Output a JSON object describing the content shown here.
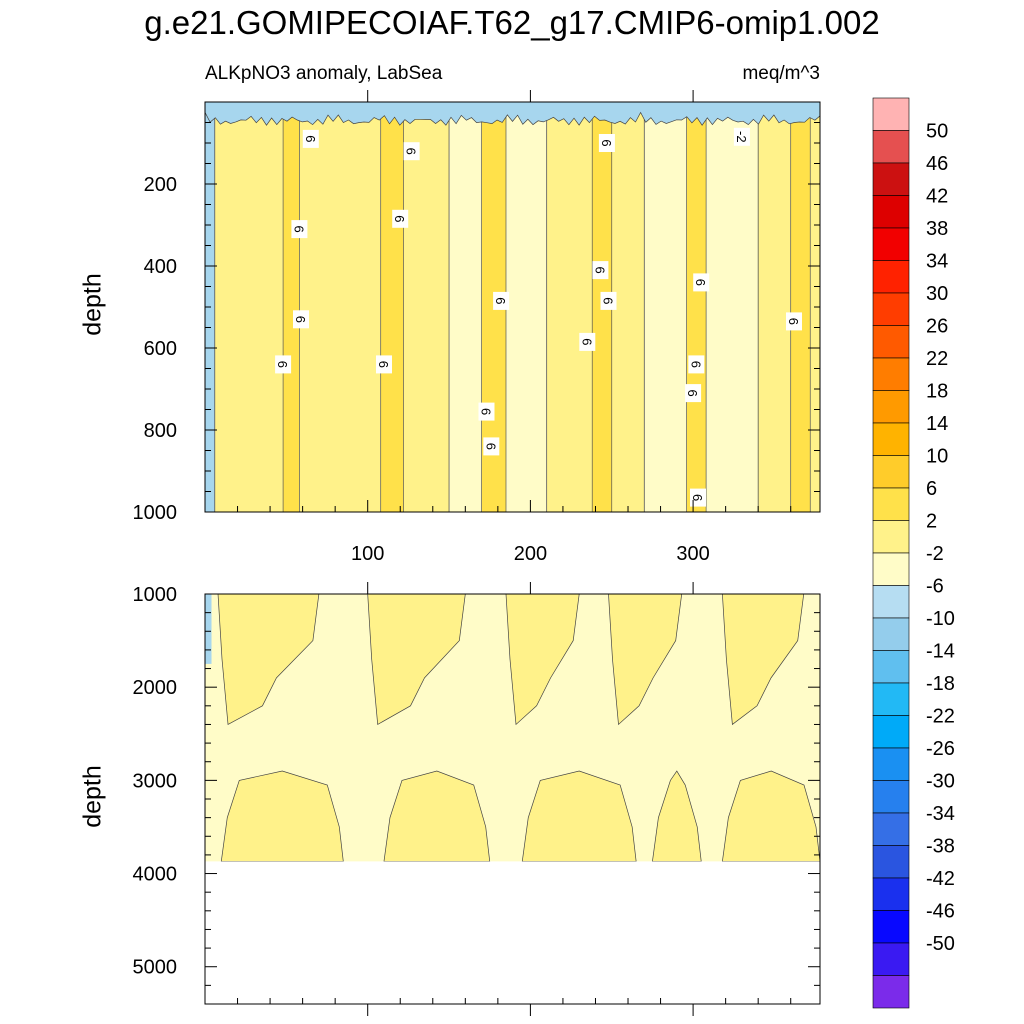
{
  "title": "g.e21.GOMIPECOIAF.T62_g17.CMIP6-omip1.002",
  "subtitle_left": "ALKpNO3 anomaly, LabSea",
  "subtitle_right": "meq/m^3",
  "chart_data": [
    {
      "type": "heatmap",
      "panel": "upper",
      "ylabel": "depth",
      "xlabel": "",
      "xlim": [
        0,
        378
      ],
      "ylim": [
        1000,
        0
      ],
      "x_ticks": [
        100,
        200,
        300
      ],
      "y_ticks": [
        200,
        400,
        600,
        800,
        1000
      ],
      "contour_labels": [
        {
          "x": 65,
          "y": 90,
          "text": "6"
        },
        {
          "x": 127,
          "y": 120,
          "text": "6"
        },
        {
          "x": 247,
          "y": 100,
          "text": "6"
        },
        {
          "x": 330,
          "y": 85,
          "text": "-2"
        },
        {
          "x": 58,
          "y": 310,
          "text": "6"
        },
        {
          "x": 120,
          "y": 285,
          "text": "6"
        },
        {
          "x": 243,
          "y": 410,
          "text": "6"
        },
        {
          "x": 305,
          "y": 440,
          "text": "6"
        },
        {
          "x": 182,
          "y": 485,
          "text": "6"
        },
        {
          "x": 248,
          "y": 485,
          "text": "6"
        },
        {
          "x": 362,
          "y": 535,
          "text": "6"
        },
        {
          "x": 59,
          "y": 530,
          "text": "6"
        },
        {
          "x": 235,
          "y": 585,
          "text": "6"
        },
        {
          "x": 48,
          "y": 640,
          "text": "6"
        },
        {
          "x": 110,
          "y": 640,
          "text": "6"
        },
        {
          "x": 302,
          "y": 640,
          "text": "6"
        },
        {
          "x": 300,
          "y": 710,
          "text": "6"
        },
        {
          "x": 173,
          "y": 755,
          "text": "6"
        },
        {
          "x": 176,
          "y": 840,
          "text": "6"
        },
        {
          "x": 303,
          "y": 965,
          "text": "6"
        }
      ]
    },
    {
      "type": "heatmap",
      "panel": "lower",
      "ylabel": "depth",
      "xlabel": "",
      "xlim": [
        0,
        378
      ],
      "ylim": [
        5400,
        1000
      ],
      "y_ticks": [
        1000,
        2000,
        3000,
        4000,
        5000
      ],
      "data_max_depth": 3870
    }
  ],
  "colorbar": {
    "labels": [
      "50",
      "46",
      "42",
      "38",
      "34",
      "30",
      "26",
      "22",
      "18",
      "14",
      "10",
      "6",
      "2",
      "-2",
      "-6",
      "-10",
      "-14",
      "-18",
      "-22",
      "-26",
      "-30",
      "-34",
      "-38",
      "-42",
      "-46",
      "-50"
    ],
    "colors": [
      "#FFB3B3",
      "#E55050",
      "#CC1111",
      "#DD0000",
      "#F20000",
      "#FF2200",
      "#FF3D00",
      "#FF5A00",
      "#FF7D00",
      "#FF9A00",
      "#FFB300",
      "#FFCC2A",
      "#FFE14A",
      "#FFF28A",
      "#FFFCC8",
      "#B6DDF2",
      "#94CDEC",
      "#60BFEF",
      "#22B9F5",
      "#00AAF8",
      "#1A90F2",
      "#2680EE",
      "#356FE6",
      "#2A55E0",
      "#1A30EE",
      "#0808FF",
      "#3A1AF2",
      "#7B2BEA"
    ]
  },
  "palette": {
    "c_neg": "#A7D6EE",
    "c_low": "#FFFCC8",
    "c_mid": "#FFF28A",
    "c_high": "#FFE14A"
  }
}
